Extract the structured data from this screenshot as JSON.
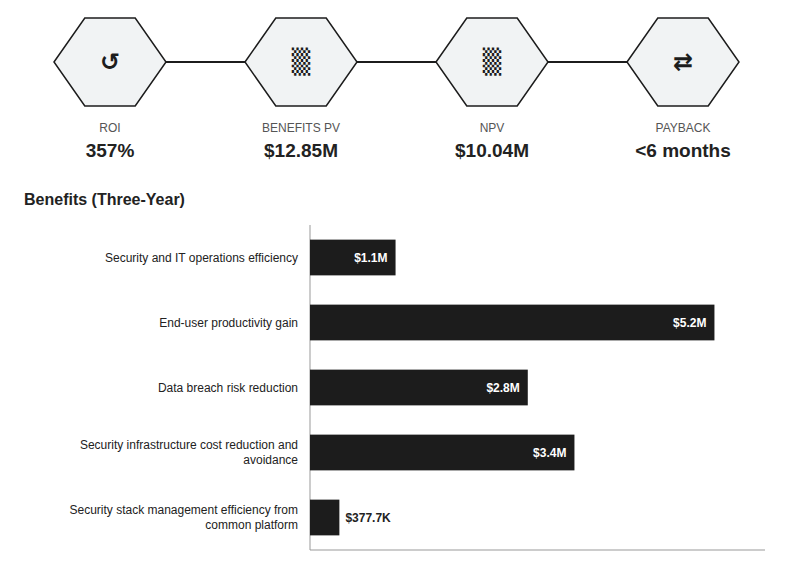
{
  "chart_data": {
    "type": "bar",
    "orientation": "horizontal",
    "title": "Benefits (Three-Year)",
    "categories": [
      "Security and IT operations efficiency",
      "End-user productivity gain",
      "Data breach risk reduction",
      "Security infrastructure cost reduction and\navoidance",
      "Security stack management efficiency from\ncommon platform"
    ],
    "values": [
      1.1,
      5.2,
      2.8,
      3.4,
      0.3777
    ],
    "value_labels": [
      "$1.1M",
      "$5.2M",
      "$2.8M",
      "$3.4M",
      "$377.7K"
    ],
    "data_labels": true,
    "color": "#1c1c1c",
    "xlim": [
      0,
      5.85
    ],
    "tick_labels": false,
    "grid": false,
    "annotations": [
      {
        "icon": "↺",
        "label": "ROI",
        "value": "357%"
      },
      {
        "icon": "▒",
        "label": "BENEFITS PV",
        "value": "$12.85M"
      },
      {
        "icon": "▒",
        "label": "NPV",
        "value": "$10.04M"
      },
      {
        "icon": "⇄",
        "label": "PAYBACK",
        "value": "<6 months"
      }
    ]
  }
}
